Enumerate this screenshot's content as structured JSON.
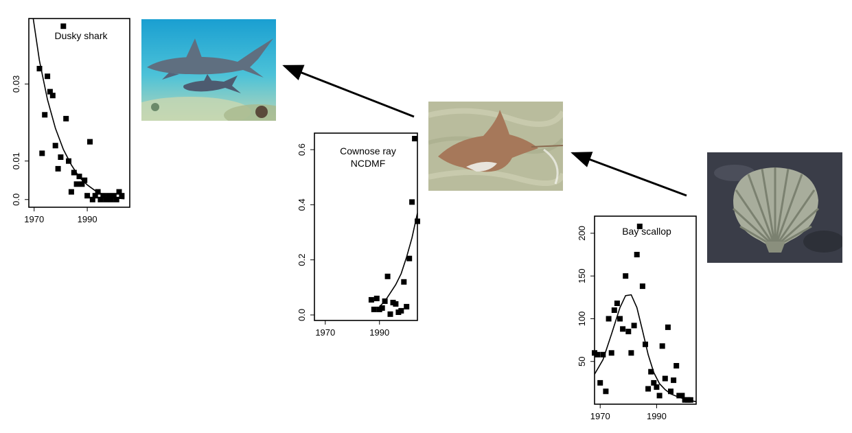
{
  "chart_data": [
    {
      "type": "scatter",
      "title": "Dusky shark",
      "x_ticks": [
        1970,
        1990
      ],
      "y_ticks": [
        "0.0",
        "0.01",
        "0.03"
      ],
      "xlim": [
        1968,
        2006
      ],
      "ylim": [
        -0.002,
        0.047
      ],
      "points": [
        [
          1972,
          0.034
        ],
        [
          1973,
          0.012
        ],
        [
          1974,
          0.022
        ],
        [
          1975,
          0.032
        ],
        [
          1976,
          0.028
        ],
        [
          1977,
          0.027
        ],
        [
          1978,
          0.014
        ],
        [
          1979,
          0.008
        ],
        [
          1980,
          0.011
        ],
        [
          1981,
          0.045
        ],
        [
          1982,
          0.021
        ],
        [
          1983,
          0.01
        ],
        [
          1984,
          0.002
        ],
        [
          1985,
          0.007
        ],
        [
          1986,
          0.004
        ],
        [
          1987,
          0.006
        ],
        [
          1988,
          0.004
        ],
        [
          1989,
          0.005
        ],
        [
          1990,
          0.001
        ],
        [
          1991,
          0.015
        ],
        [
          1992,
          0.0
        ],
        [
          1993,
          0.001
        ],
        [
          1994,
          0.002
        ],
        [
          1995,
          0.0
        ],
        [
          1996,
          0.001
        ],
        [
          1997,
          0.0
        ],
        [
          1998,
          0.001
        ],
        [
          1999,
          0.0
        ],
        [
          2000,
          0.001
        ],
        [
          2001,
          0.0
        ],
        [
          2002,
          0.002
        ],
        [
          2003,
          0.001
        ]
      ],
      "curve": [
        [
          1969,
          0.05
        ],
        [
          1972,
          0.036
        ],
        [
          1975,
          0.026
        ],
        [
          1978,
          0.0185
        ],
        [
          1981,
          0.013
        ],
        [
          1984,
          0.009
        ],
        [
          1987,
          0.0058
        ],
        [
          1990,
          0.0038
        ],
        [
          1993,
          0.0023
        ],
        [
          1996,
          0.0013
        ],
        [
          1999,
          0.0007
        ],
        [
          2002,
          0.0003
        ],
        [
          2004,
          0.0002
        ]
      ]
    },
    {
      "type": "scatter",
      "title": "Cownose ray",
      "subtitle": "NCDMF",
      "x_ticks": [
        1970,
        1990
      ],
      "y_ticks": [
        "0.0",
        "0.2",
        "0.4",
        "0.6"
      ],
      "xlim": [
        1966,
        2004
      ],
      "ylim": [
        -0.02,
        0.66
      ],
      "points": [
        [
          1987,
          0.055
        ],
        [
          1988,
          0.02
        ],
        [
          1989,
          0.06
        ],
        [
          1990,
          0.02
        ],
        [
          1991,
          0.025
        ],
        [
          1992,
          0.05
        ],
        [
          1993,
          0.14
        ],
        [
          1994,
          0.003
        ],
        [
          1995,
          0.045
        ],
        [
          1996,
          0.04
        ],
        [
          1997,
          0.01
        ],
        [
          1998,
          0.015
        ],
        [
          1999,
          0.12
        ],
        [
          2000,
          0.03
        ],
        [
          2001,
          0.205
        ],
        [
          2002,
          0.41
        ],
        [
          2003,
          0.64
        ],
        [
          2004,
          0.34
        ]
      ],
      "curve": [
        [
          1990,
          0.03
        ],
        [
          1992,
          0.05
        ],
        [
          1994,
          0.08
        ],
        [
          1996,
          0.11
        ],
        [
          1998,
          0.15
        ],
        [
          2000,
          0.21
        ],
        [
          2002,
          0.28
        ],
        [
          2004,
          0.37
        ]
      ]
    },
    {
      "type": "scatter",
      "title": "Bay scallop",
      "x_ticks": [
        1970,
        1990
      ],
      "y_ticks": [
        "50",
        "100",
        "150",
        "200"
      ],
      "xlim": [
        1968,
        2004
      ],
      "ylim": [
        0,
        220
      ],
      "points": [
        [
          1968,
          60
        ],
        [
          1969,
          58
        ],
        [
          1970,
          25
        ],
        [
          1971,
          58
        ],
        [
          1972,
          15
        ],
        [
          1973,
          100
        ],
        [
          1974,
          60
        ],
        [
          1975,
          110
        ],
        [
          1976,
          118
        ],
        [
          1977,
          100
        ],
        [
          1978,
          88
        ],
        [
          1979,
          150
        ],
        [
          1980,
          85
        ],
        [
          1981,
          60
        ],
        [
          1982,
          92
        ],
        [
          1983,
          175
        ],
        [
          1984,
          208
        ],
        [
          1985,
          138
        ],
        [
          1986,
          70
        ],
        [
          1987,
          18
        ],
        [
          1988,
          38
        ],
        [
          1989,
          25
        ],
        [
          1990,
          20
        ],
        [
          1991,
          10
        ],
        [
          1992,
          68
        ],
        [
          1993,
          30
        ],
        [
          1994,
          90
        ],
        [
          1995,
          15
        ],
        [
          1996,
          28
        ],
        [
          1997,
          45
        ],
        [
          1998,
          10
        ],
        [
          1999,
          10
        ],
        [
          2000,
          5
        ],
        [
          2001,
          5
        ],
        [
          2002,
          5
        ]
      ],
      "curve": [
        [
          1968,
          35
        ],
        [
          1971,
          52
        ],
        [
          1974,
          82
        ],
        [
          1977,
          113
        ],
        [
          1979,
          127
        ],
        [
          1981,
          128
        ],
        [
          1983,
          113
        ],
        [
          1985,
          86
        ],
        [
          1987,
          58
        ],
        [
          1989,
          37
        ],
        [
          1991,
          24
        ],
        [
          1993,
          17
        ],
        [
          1995,
          12
        ],
        [
          1998,
          8
        ],
        [
          2001,
          5
        ],
        [
          2004,
          3
        ]
      ]
    }
  ],
  "images": {
    "shark": "dusky-shark-photo",
    "ray": "cownose-ray-photo",
    "scallop": "bay-scallop-photo"
  }
}
